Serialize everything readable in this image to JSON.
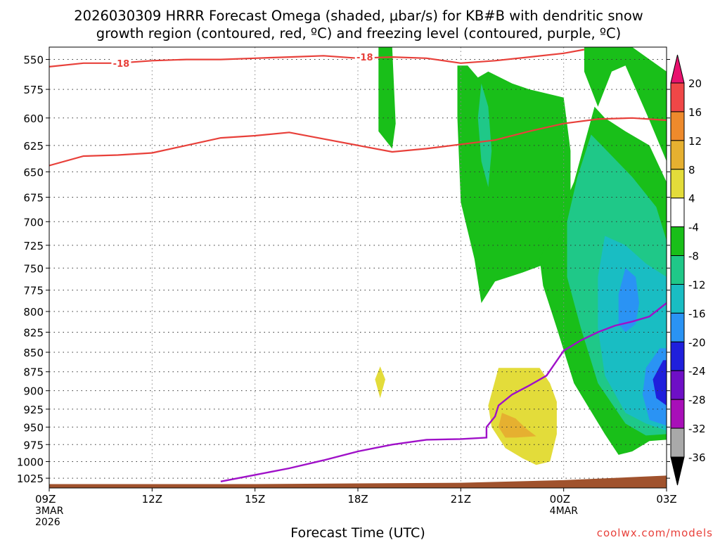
{
  "title": "2026030309 HRRR Forecast Omega (shaded, μbar/s) for KB#B with dendritic snow growth region (contoured, red, ºC) and freezing level (contoured, purple, ºC)",
  "title_line1": "2026030309 HRRR Forecast Omega (shaded, μbar/s) for KB#B with dendritic snow",
  "title_line2": "growth region (contoured, red, ºC) and freezing level (contoured, purple, ºC)",
  "watermark": "coolwx.com/models",
  "colors": {
    "dendritic_contour": "#e8403a",
    "freezing_contour": "#9f10c8",
    "ground": "#a0522d"
  },
  "chart_data": {
    "type": "heatmap",
    "xlabel": "Forecast Time (UTC)",
    "x_ticks": [
      {
        "label": "09Z",
        "sub": [
          "3MAR",
          "2026"
        ],
        "hour": 0
      },
      {
        "label": "12Z",
        "sub": [],
        "hour": 3
      },
      {
        "label": "15Z",
        "sub": [],
        "hour": 6
      },
      {
        "label": "18Z",
        "sub": [],
        "hour": 9
      },
      {
        "label": "21Z",
        "sub": [],
        "hour": 12
      },
      {
        "label": "00Z",
        "sub": [
          "4MAR"
        ],
        "hour": 15
      },
      {
        "label": "03Z",
        "sub": [],
        "hour": 18
      }
    ],
    "xlim_hours": [
      0,
      18
    ],
    "y_ticks": [
      550,
      575,
      600,
      625,
      650,
      675,
      700,
      725,
      750,
      775,
      800,
      825,
      850,
      875,
      900,
      925,
      950,
      975,
      1000,
      1025
    ],
    "ylim_hPa": [
      540,
      1040
    ],
    "y_scale": "log-pressure",
    "grid": true,
    "colorbar": {
      "labels": [
        "20",
        "16",
        "12",
        "8",
        "4",
        "-4",
        "-8",
        "-12",
        "-16",
        "-20",
        "-24",
        "-28",
        "-32",
        "-36"
      ],
      "colors": [
        "#e8126e",
        "#f04747",
        "#ee8a2c",
        "#e6b030",
        "#e3dc3a",
        "#ffffff",
        "#19bf19",
        "#1fc888",
        "#19bdc3",
        "#2a93f4",
        "#1f1fdc",
        "#6e0fc6",
        "#a80fb8",
        "#a9a9a9",
        "#000000"
      ]
    },
    "omega_regions": [
      {
        "level": "-4",
        "color": "#19bf19",
        "points": [
          [
            9.6,
            540
          ],
          [
            10.0,
            540
          ],
          [
            10.1,
            605
          ],
          [
            10.0,
            628
          ],
          [
            9.6,
            612
          ],
          [
            9.6,
            540
          ]
        ]
      },
      {
        "level": "-4",
        "color": "#19bf19",
        "points": [
          [
            11.9,
            555
          ],
          [
            12.2,
            555
          ],
          [
            12.5,
            565
          ],
          [
            12.8,
            560
          ],
          [
            13.5,
            570
          ],
          [
            14.0,
            575
          ],
          [
            15.0,
            582
          ],
          [
            15.2,
            630
          ],
          [
            15.2,
            720
          ],
          [
            14.5,
            745
          ],
          [
            13.8,
            755
          ],
          [
            13.0,
            765
          ],
          [
            12.6,
            790
          ],
          [
            12.4,
            740
          ],
          [
            12.0,
            680
          ],
          [
            11.9,
            600
          ],
          [
            11.9,
            555
          ]
        ]
      },
      {
        "level": "-4",
        "color": "#19bf19",
        "points": [
          [
            15.6,
            540
          ],
          [
            17.0,
            540
          ],
          [
            18.0,
            560
          ],
          [
            18.0,
            640
          ],
          [
            17.5,
            602
          ],
          [
            16.8,
            555
          ],
          [
            16.4,
            560
          ],
          [
            16.0,
            590
          ],
          [
            15.6,
            560
          ],
          [
            15.6,
            540
          ]
        ]
      },
      {
        "level": "-4",
        "color": "#19bf19",
        "points": [
          [
            15.9,
            590
          ],
          [
            16.2,
            600
          ],
          [
            16.8,
            612
          ],
          [
            17.5,
            625
          ],
          [
            18.0,
            660
          ],
          [
            18.0,
            968
          ],
          [
            17.5,
            970
          ],
          [
            17.0,
            985
          ],
          [
            16.6,
            990
          ],
          [
            16.2,
            960
          ],
          [
            15.3,
            890
          ],
          [
            14.8,
            820
          ],
          [
            14.4,
            770
          ],
          [
            14.3,
            740
          ],
          [
            14.8,
            700
          ],
          [
            15.3,
            660
          ],
          [
            15.9,
            590
          ]
        ]
      },
      {
        "level": "-8",
        "color": "#1fc888",
        "points": [
          [
            12.6,
            570
          ],
          [
            12.8,
            590
          ],
          [
            12.9,
            630
          ],
          [
            12.8,
            665
          ],
          [
            12.6,
            640
          ],
          [
            12.5,
            600
          ],
          [
            12.6,
            570
          ]
        ]
      },
      {
        "level": "-8",
        "color": "#1fc888",
        "points": [
          [
            15.8,
            615
          ],
          [
            16.2,
            628
          ],
          [
            17.0,
            655
          ],
          [
            17.7,
            685
          ],
          [
            18.0,
            720
          ],
          [
            18.0,
            960
          ],
          [
            17.4,
            962
          ],
          [
            16.8,
            945
          ],
          [
            16.0,
            890
          ],
          [
            15.5,
            820
          ],
          [
            15.1,
            760
          ],
          [
            15.1,
            700
          ],
          [
            15.4,
            655
          ],
          [
            15.8,
            615
          ]
        ]
      },
      {
        "level": "-12",
        "color": "#19bdc3",
        "points": [
          [
            16.2,
            715
          ],
          [
            16.8,
            725
          ],
          [
            17.4,
            745
          ],
          [
            18.0,
            760
          ],
          [
            18.0,
            955
          ],
          [
            17.4,
            945
          ],
          [
            16.8,
            930
          ],
          [
            16.2,
            880
          ],
          [
            16.0,
            820
          ],
          [
            16.0,
            760
          ],
          [
            16.2,
            715
          ]
        ]
      },
      {
        "level": "-16",
        "color": "#2a93f4",
        "points": [
          [
            16.8,
            750
          ],
          [
            17.1,
            760
          ],
          [
            17.2,
            790
          ],
          [
            17.1,
            815
          ],
          [
            16.8,
            825
          ],
          [
            16.6,
            815
          ],
          [
            16.6,
            780
          ],
          [
            16.8,
            750
          ]
        ]
      },
      {
        "level": "-16",
        "color": "#2a93f4",
        "points": [
          [
            17.8,
            845
          ],
          [
            18.0,
            845
          ],
          [
            18.0,
            948
          ],
          [
            17.5,
            940
          ],
          [
            17.3,
            905
          ],
          [
            17.4,
            870
          ],
          [
            17.8,
            845
          ]
        ]
      },
      {
        "level": "-20",
        "color": "#1f1fdc",
        "points": [
          [
            17.9,
            860
          ],
          [
            18.0,
            860
          ],
          [
            18.0,
            920
          ],
          [
            17.7,
            910
          ],
          [
            17.6,
            885
          ],
          [
            17.9,
            860
          ]
        ]
      },
      {
        "level": "4",
        "color": "#e3dc3a",
        "points": [
          [
            9.65,
            868
          ],
          [
            9.8,
            885
          ],
          [
            9.65,
            910
          ],
          [
            9.5,
            885
          ],
          [
            9.65,
            868
          ]
        ]
      },
      {
        "level": "4",
        "color": "#e3dc3a",
        "points": [
          [
            13.1,
            870
          ],
          [
            14.3,
            870
          ],
          [
            14.6,
            890
          ],
          [
            14.8,
            915
          ],
          [
            14.8,
            960
          ],
          [
            14.6,
            1000
          ],
          [
            14.2,
            1005
          ],
          [
            13.8,
            995
          ],
          [
            13.3,
            980
          ],
          [
            12.9,
            950
          ],
          [
            12.8,
            920
          ],
          [
            13.1,
            870
          ]
        ]
      },
      {
        "level": "8",
        "color": "#e6b030",
        "points": [
          [
            13.2,
            930
          ],
          [
            13.6,
            938
          ],
          [
            13.9,
            952
          ],
          [
            14.2,
            963
          ],
          [
            13.6,
            965
          ],
          [
            13.3,
            965
          ],
          [
            13.1,
            950
          ],
          [
            13.2,
            930
          ]
        ]
      }
    ],
    "dendritic_contours": [
      {
        "label": "-18",
        "points": [
          [
            0,
            556
          ],
          [
            1,
            553
          ],
          [
            2,
            553
          ],
          [
            3,
            551
          ],
          [
            4,
            550
          ],
          [
            5,
            550
          ],
          [
            6,
            549
          ],
          [
            7,
            548
          ],
          [
            8,
            547
          ],
          [
            9,
            549
          ],
          [
            10,
            548
          ],
          [
            11,
            549
          ],
          [
            12,
            553
          ],
          [
            13,
            551
          ],
          [
            14,
            548
          ],
          [
            15,
            545
          ],
          [
            15.6,
            542
          ]
        ]
      },
      {
        "label": "",
        "points": [
          [
            0,
            644
          ],
          [
            1,
            635
          ],
          [
            2,
            634
          ],
          [
            3,
            632
          ],
          [
            4,
            625
          ],
          [
            5,
            618
          ],
          [
            6,
            616
          ],
          [
            7,
            613
          ],
          [
            8,
            619
          ],
          [
            9,
            625
          ],
          [
            10,
            631
          ],
          [
            11,
            628
          ],
          [
            12,
            624
          ],
          [
            13,
            620
          ],
          [
            14,
            612
          ],
          [
            15,
            605
          ],
          [
            16,
            601
          ],
          [
            17,
            600
          ],
          [
            18,
            602
          ]
        ]
      }
    ],
    "dendritic_labels": [
      {
        "text": "-18",
        "hour": 2.1,
        "hPa": 553
      },
      {
        "text": "-18",
        "hour": 9.2,
        "hPa": 548
      }
    ],
    "freezing_contour": {
      "points": [
        [
          5.0,
          1030
        ],
        [
          6,
          1020
        ],
        [
          7,
          1010
        ],
        [
          8,
          998
        ],
        [
          9,
          985
        ],
        [
          10,
          975
        ],
        [
          11,
          968
        ],
        [
          12,
          967
        ],
        [
          12.75,
          965
        ],
        [
          12.75,
          950
        ],
        [
          13.0,
          935
        ],
        [
          13.1,
          920
        ],
        [
          13.5,
          905
        ],
        [
          14.0,
          893
        ],
        [
          14.5,
          880
        ],
        [
          15.0,
          848
        ],
        [
          15.5,
          835
        ],
        [
          16.0,
          825
        ],
        [
          16.5,
          817
        ],
        [
          17.0,
          812
        ],
        [
          17.5,
          806
        ],
        [
          18.0,
          790
        ]
      ]
    },
    "ground": {
      "points": [
        [
          0,
          1034
        ],
        [
          6,
          1034
        ],
        [
          12,
          1032
        ],
        [
          15,
          1028
        ],
        [
          18,
          1021
        ]
      ]
    }
  }
}
